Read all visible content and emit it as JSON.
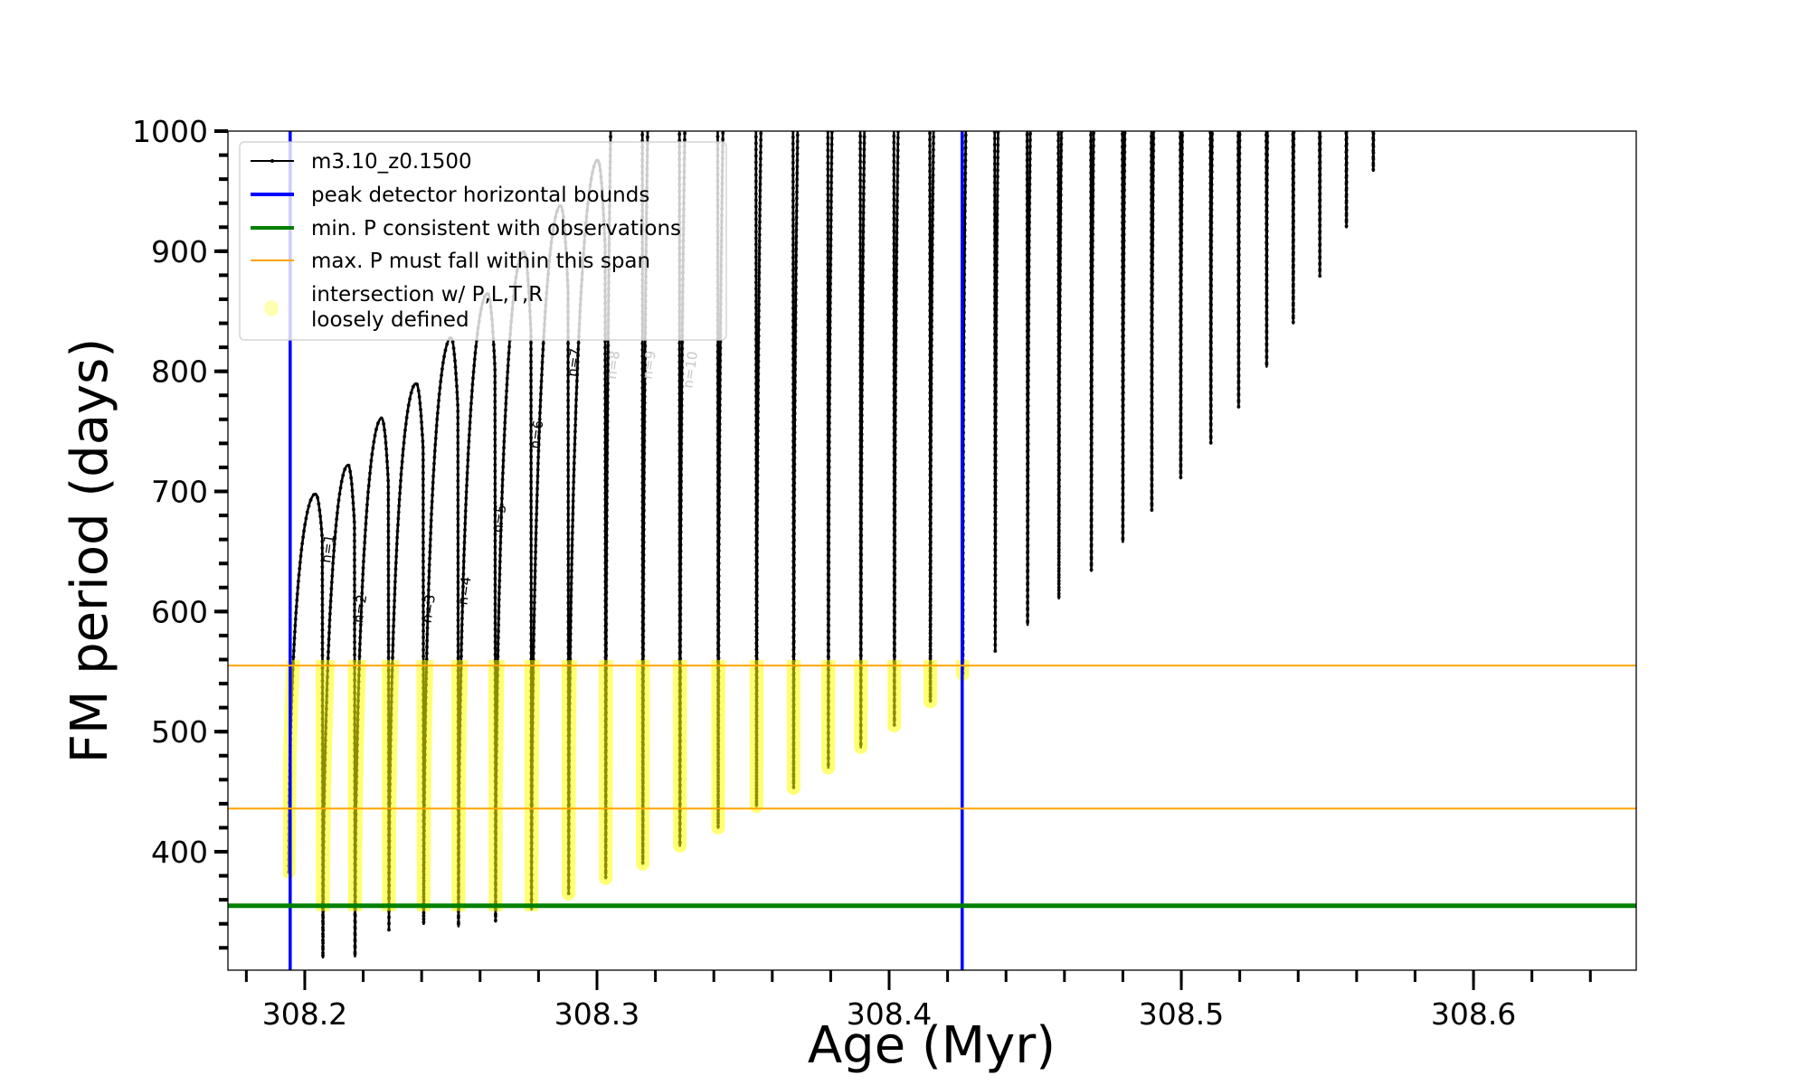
{
  "chart_data": {
    "type": "line",
    "title": "",
    "xlabel": "Age (Myr)",
    "ylabel": "FM period (days)",
    "xlim": [
      308.1737,
      308.6557
    ],
    "ylim": [
      301.4,
      1000
    ],
    "grid": false,
    "legend_position": "top-left",
    "x_ticks": [
      "308.2",
      "308.3",
      "308.4",
      "308.5",
      "308.6"
    ],
    "x_tick_values": [
      308.2,
      308.3,
      308.4,
      308.5,
      308.6
    ],
    "x_minor_step": 0.02,
    "y_ticks": [
      "400",
      "500",
      "600",
      "700",
      "800",
      "900",
      "1000"
    ],
    "y_tick_values": [
      400,
      500,
      600,
      700,
      800,
      900,
      1000
    ],
    "y_minor_step": 20,
    "series": [
      {
        "name": "m3.10_z0.1500",
        "color": "#000000",
        "start": {
          "age": 308.1945,
          "period": 383
        },
        "pulse_ages": [
          308.206,
          308.217,
          308.2286,
          308.2405,
          308.2524,
          308.2651,
          308.2774,
          308.2901,
          308.3028,
          308.3155,
          308.3282,
          308.3413,
          308.3544,
          308.3671,
          308.379,
          308.3901,
          308.4016,
          308.4139,
          308.425,
          308.4361,
          308.4472,
          308.4579,
          308.469,
          308.4798,
          308.4897,
          308.4996,
          308.5099,
          308.5194,
          308.529,
          308.5381,
          308.5472,
          308.5563,
          308.5655
        ],
        "pulse_min_periods": [
          312,
          313,
          335,
          340,
          338,
          342,
          352,
          365,
          378,
          390,
          405,
          420,
          438,
          453,
          470,
          487,
          505,
          525,
          548,
          567,
          589,
          611,
          634,
          658,
          684,
          711,
          740,
          770,
          804,
          840,
          879,
          920,
          967
        ],
        "pre_pulse_peak_periods": [
          698,
          722,
          761,
          790,
          828,
          865,
          900,
          938,
          976,
          null,
          null,
          null,
          null,
          null,
          null,
          null,
          null,
          null,
          null,
          null,
          null,
          null,
          null,
          null,
          null,
          null,
          null,
          null,
          null,
          null,
          null,
          null,
          null
        ]
      }
    ],
    "reference_lines": {
      "peak_detector_bounds": {
        "label": "peak detector horizontal bounds",
        "color": "#0000ff",
        "ages": [
          308.195,
          308.425
        ]
      },
      "min_period": {
        "label": "min. P consistent with observations",
        "color": "#008000",
        "period": 355
      },
      "max_period_span": {
        "label": "max. P must fall within this span",
        "color": "#ffa500",
        "periods": [
          436,
          555
        ]
      }
    },
    "intersection": {
      "label_line1": "intersection w/ P,L,T,R",
      "label_line2": "loosely defined",
      "color": "#ffff00"
    },
    "annotations": [
      {
        "text": "n=1",
        "age": 308.2087,
        "period": 640,
        "color": "#000000"
      },
      {
        "text": "n=2",
        "age": 308.2198,
        "period": 590,
        "color": "#000000"
      },
      {
        "text": "n=3",
        "age": 308.2432,
        "period": 590,
        "color": "#000000"
      },
      {
        "text": "n=4",
        "age": 308.2555,
        "period": 605,
        "color": "#000000"
      },
      {
        "text": "n=5",
        "age": 308.2675,
        "period": 665,
        "color": "#000000"
      },
      {
        "text": "n=6",
        "age": 308.2802,
        "period": 735,
        "color": "#000000"
      },
      {
        "text": "n=7",
        "age": 308.2929,
        "period": 795,
        "color": "#000000"
      },
      {
        "text": "n=8",
        "age": 308.3064,
        "period": 855,
        "color": "#c8c8c8"
      },
      {
        "text": "n=9",
        "age": 308.3187,
        "period": 920,
        "color": "#c8c8c8"
      },
      {
        "text": "n=10",
        "age": 308.3326,
        "period": 980,
        "color": "#c8c8c8"
      }
    ]
  }
}
